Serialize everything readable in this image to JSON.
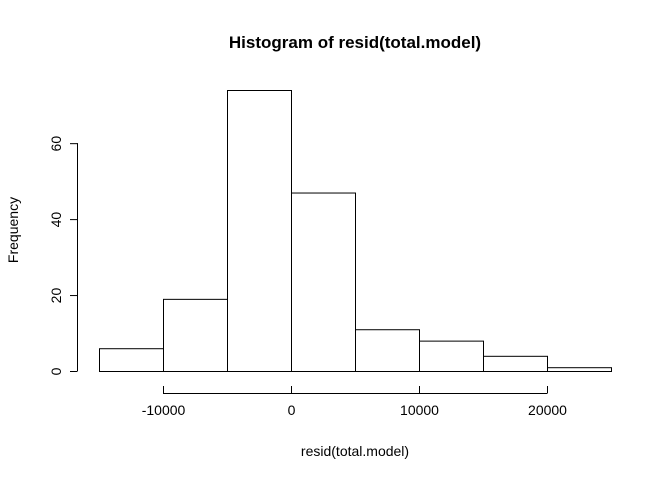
{
  "chart_data": {
    "type": "bar",
    "title": "Histogram of resid(total.model)",
    "xlabel": "resid(total.model)",
    "ylabel": "Frequency",
    "bins": [
      {
        "start": -15000,
        "end": -10000,
        "count": 6
      },
      {
        "start": -10000,
        "end": -5000,
        "count": 19
      },
      {
        "start": -5000,
        "end": 0,
        "count": 74
      },
      {
        "start": 0,
        "end": 5000,
        "count": 47
      },
      {
        "start": 5000,
        "end": 10000,
        "count": 11
      },
      {
        "start": 10000,
        "end": 15000,
        "count": 8
      },
      {
        "start": 15000,
        "end": 20000,
        "count": 4
      },
      {
        "start": 20000,
        "end": 25000,
        "count": 1
      }
    ],
    "xlim": [
      -15000,
      25000
    ],
    "ylim": [
      0,
      74
    ],
    "x_ticks": [
      -10000,
      0,
      10000,
      20000
    ],
    "x_tick_labels": [
      "-10000",
      "0",
      "10000",
      "20000"
    ],
    "y_ticks": [
      0,
      20,
      40,
      60
    ],
    "y_tick_labels": [
      "0",
      "20",
      "40",
      "60"
    ],
    "bar_fill": "#ffffff",
    "bar_stroke": "#000000",
    "grid": false,
    "legend": "none"
  }
}
